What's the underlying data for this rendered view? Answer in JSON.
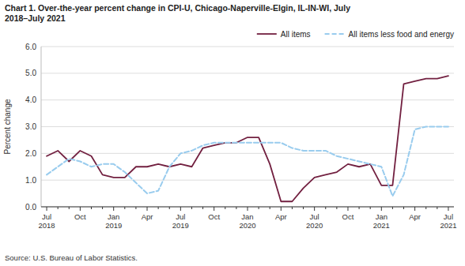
{
  "chart_data": {
    "type": "line",
    "title": "Chart 1. Over-the-year percent change in CPI-U, Chicago-Naperville-Elgin, IL-IN-WI, July\n2018–July 2021",
    "y_label": "Percent change",
    "source": "Source: U.S. Bureau of Labor Statistics.",
    "categories": [
      "Jul\n2018",
      null,
      null,
      "Oct",
      null,
      null,
      "Jan\n2019",
      null,
      null,
      "Apr",
      null,
      null,
      "Jul\n2019",
      null,
      null,
      "Oct",
      null,
      null,
      "Jan\n2020",
      null,
      null,
      "Apr",
      null,
      null,
      "Jul\n2020",
      null,
      null,
      "Oct",
      null,
      null,
      "Jan\n2021",
      null,
      null,
      "Apr",
      null,
      null,
      "Jul\n2021"
    ],
    "series": [
      {
        "name": "All items",
        "color": "#722040",
        "line_style": "solid",
        "values": [
          1.9,
          2.1,
          1.7,
          2.1,
          1.9,
          1.2,
          1.1,
          1.1,
          1.5,
          1.5,
          1.6,
          1.5,
          1.6,
          1.5,
          2.2,
          2.3,
          2.4,
          2.4,
          2.6,
          2.6,
          1.6,
          0.2,
          0.2,
          0.7,
          1.1,
          1.2,
          1.3,
          1.6,
          1.5,
          1.6,
          0.8,
          0.8,
          4.6,
          4.7,
          4.8,
          4.8,
          4.9
        ]
      },
      {
        "name": "All items less food and energy",
        "color": "#99ccee",
        "line_style": "dashed",
        "values": [
          1.2,
          1.5,
          1.8,
          1.7,
          1.5,
          1.6,
          1.6,
          1.3,
          0.9,
          0.5,
          0.6,
          1.5,
          2.0,
          2.1,
          2.3,
          2.4,
          2.4,
          2.4,
          2.4,
          2.4,
          2.4,
          2.4,
          2.2,
          2.1,
          2.1,
          2.1,
          1.9,
          1.8,
          1.7,
          1.6,
          1.5,
          0.4,
          1.2,
          2.9,
          3.0,
          3.0,
          3.0
        ]
      }
    ],
    "ylim": [
      0.0,
      6.0
    ],
    "yticks": [
      {
        "value": 0,
        "label": "0.0"
      },
      {
        "value": 1,
        "label": "1.0"
      },
      {
        "value": 2,
        "label": "2.0"
      },
      {
        "value": 3,
        "label": "3.0"
      },
      {
        "value": 4,
        "label": "4.0"
      },
      {
        "value": 5,
        "label": "5.0"
      },
      {
        "value": 6,
        "label": "6.0"
      }
    ],
    "grid": true,
    "legend": "upper right"
  }
}
